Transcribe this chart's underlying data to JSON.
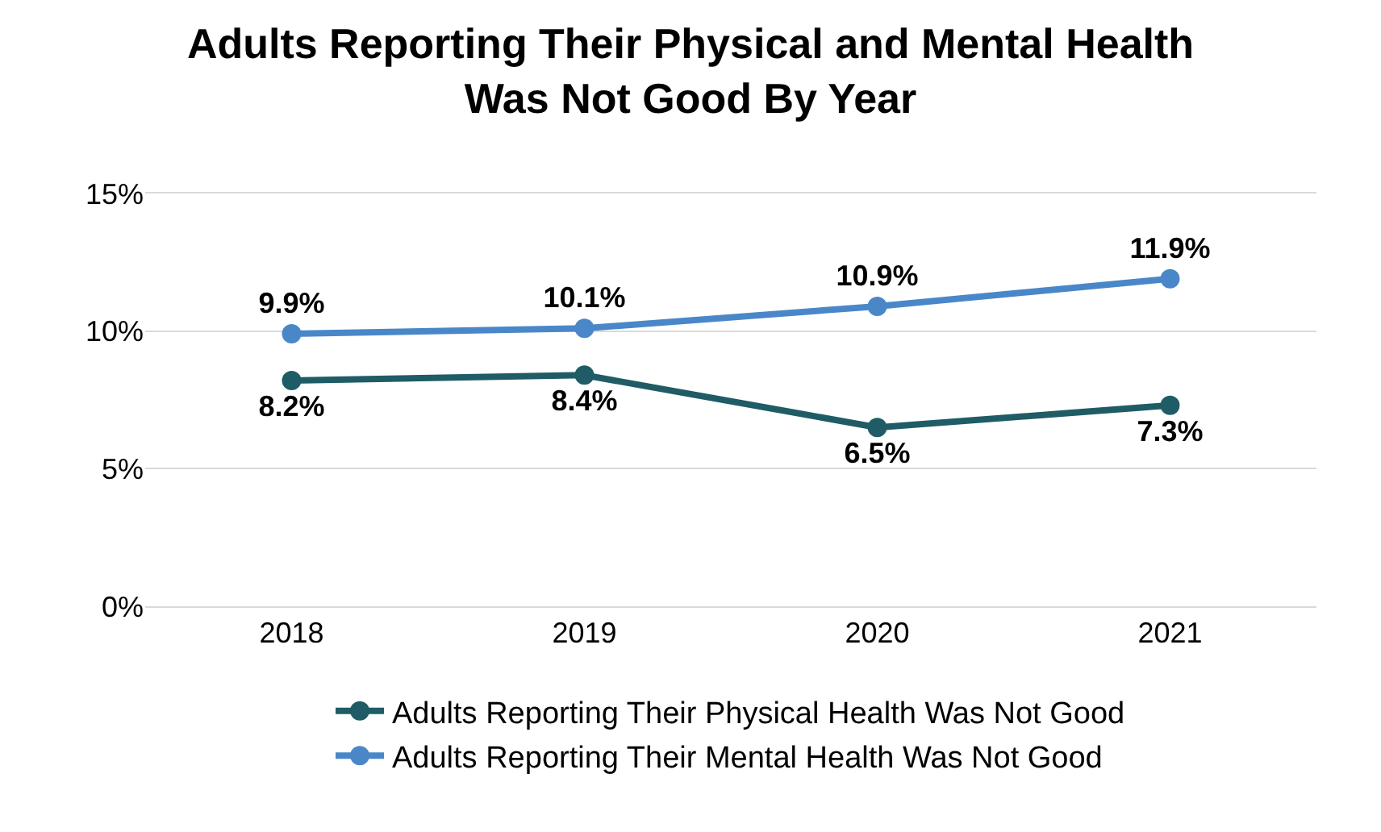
{
  "chart_data": {
    "type": "line",
    "title": "Adults Reporting Their Physical and Mental Health\nWas Not Good By Year",
    "categories": [
      "2018",
      "2019",
      "2020",
      "2021"
    ],
    "series": [
      {
        "name": "Adults Reporting Their Physical Health Was Not Good",
        "color": "#1f5c66",
        "values": [
          8.2,
          8.4,
          6.5,
          7.3
        ],
        "value_labels": [
          "8.2%",
          "8.4%",
          "6.5%",
          "7.3%"
        ]
      },
      {
        "name": "Adults Reporting Their Mental Health Was Not Good",
        "color": "#4a87c9",
        "values": [
          9.9,
          10.1,
          10.9,
          11.9
        ],
        "value_labels": [
          "9.9%",
          "10.1%",
          "10.9%",
          "11.9%"
        ]
      }
    ],
    "ylim": [
      0,
      15
    ],
    "yticks": [
      {
        "value": 0,
        "label": "0%"
      },
      {
        "value": 5,
        "label": "5%"
      },
      {
        "value": 10,
        "label": "10%"
      },
      {
        "value": 15,
        "label": "15%"
      }
    ],
    "grid": "y",
    "legend": "bottom",
    "marker": "circle",
    "line_style": "solid"
  }
}
